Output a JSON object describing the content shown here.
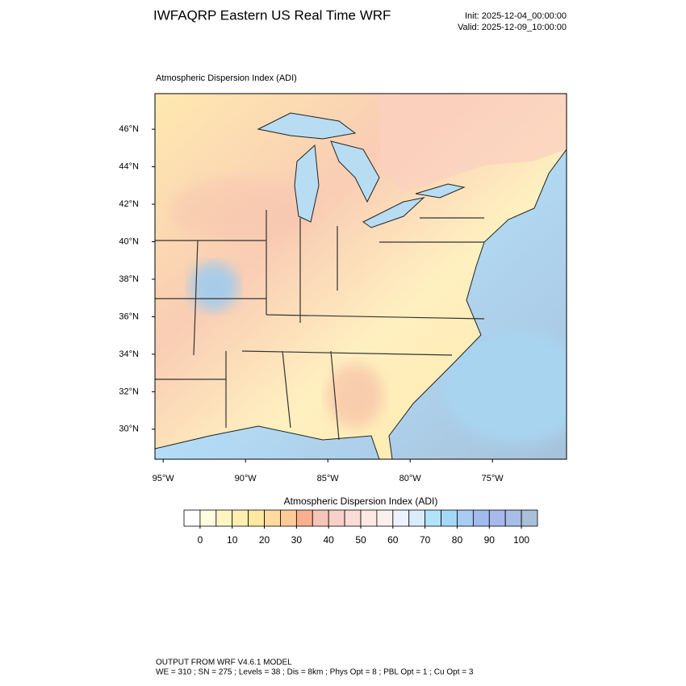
{
  "header": {
    "title": "IWFAQRP Eastern US Real Time WRF",
    "init": "Init: 2025-12-04_00:00:00",
    "valid": "Valid: 2025-12-09_10:00:00"
  },
  "map": {
    "label": "Atmospheric Dispersion Index   (ADI)",
    "latlim": [
      28.4,
      47.9
    ],
    "lonlim": [
      -95.5,
      -70.5
    ],
    "lat_ticks": [
      {
        "value": 30,
        "label": "30°N"
      },
      {
        "value": 32,
        "label": "32°N"
      },
      {
        "value": 34,
        "label": "34°N"
      },
      {
        "value": 36,
        "label": "36°N"
      },
      {
        "value": 38,
        "label": "38°N"
      },
      {
        "value": 40,
        "label": "40°N"
      },
      {
        "value": 42,
        "label": "42°N"
      },
      {
        "value": 44,
        "label": "44°N"
      },
      {
        "value": 46,
        "label": "46°N"
      }
    ],
    "lon_ticks": [
      {
        "value": -95,
        "label": "95°W"
      },
      {
        "value": -90,
        "label": "90°W"
      },
      {
        "value": -85,
        "label": "85°W"
      },
      {
        "value": -80,
        "label": "80°W"
      },
      {
        "value": -75,
        "label": "75°W"
      }
    ]
  },
  "colorbar": {
    "title": "Atmospheric Dispersion Index  (ADI)",
    "ticks": [
      0,
      10,
      20,
      30,
      40,
      50,
      60,
      70,
      80,
      90,
      100
    ],
    "colors": [
      "#ffffff",
      "#fffde0",
      "#fff5c4",
      "#ffefb0",
      "#ffe8a0",
      "#ffdba0",
      "#ffcc99",
      "#f8b090",
      "#f7c4b8",
      "#f8d0c8",
      "#fadcd6",
      "#fde8e4",
      "#fbf0f0",
      "#eef2ff",
      "#d8ecfb",
      "#b0e4fa",
      "#a4d8f6",
      "#a8ccf2",
      "#a0bcec",
      "#a6b8ec",
      "#a8bde8",
      "#a8c0d8"
    ]
  },
  "footer": {
    "lines": [
      "OUTPUT FROM WRF V4.6.1 MODEL",
      "WE = 310 ; SN = 275 ; Levels = 38 ; Dis = 8km ; Phys Opt = 8 ; PBL Opt = 1 ; Cu Opt = 3"
    ]
  }
}
